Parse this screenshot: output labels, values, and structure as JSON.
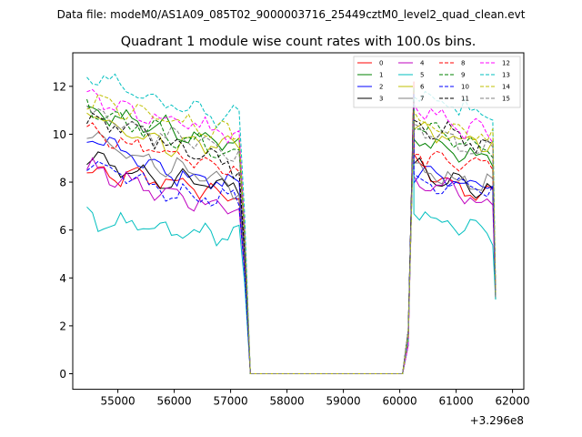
{
  "figure": {
    "suptitle": "Data file: modeM0/AS1A09_085T02_9000003716_25449cztM0_level2_quad_clean.evt"
  },
  "chart_data": {
    "type": "line",
    "title": "Quadrant 1 module wise count rates with 100.0s bins.",
    "xlabel": "",
    "ylabel": "",
    "x_offset_label": "+3.296e8",
    "xlim": [
      54200,
      62200
    ],
    "ylim": [
      -0.65,
      13.4
    ],
    "x_ticks": [
      55000,
      56000,
      57000,
      58000,
      59000,
      60000,
      61000,
      62000
    ],
    "y_ticks": [
      0,
      2,
      4,
      6,
      8,
      10,
      12
    ],
    "legend_position": "upper-right",
    "legend_columns": 4,
    "segments": [
      {
        "x_start": 54450,
        "x_end": 57150,
        "step": 100
      },
      {
        "x_start": 60250,
        "x_end": 61650,
        "step": 100
      }
    ],
    "gap": {
      "x": [
        57250,
        57350,
        60050,
        60150
      ],
      "transition_fraction": [
        0.6,
        0,
        0,
        0.15
      ]
    },
    "series": [
      {
        "name": "0",
        "color": "#ff0000",
        "style": "solid",
        "seg1": [
          8.3,
          8.1,
          7.3
        ],
        "seg2": [
          9.0,
          7.8,
          7.3
        ]
      },
      {
        "name": "1",
        "color": "#008000",
        "style": "solid",
        "seg1": [
          11.0,
          10.3,
          9.6
        ],
        "seg2": [
          9.8,
          9.3,
          8.8
        ]
      },
      {
        "name": "2",
        "color": "#0000ff",
        "style": "solid",
        "seg1": [
          10.0,
          8.4,
          7.9
        ],
        "seg2": [
          8.4,
          8.0,
          7.9
        ]
      },
      {
        "name": "3",
        "color": "#000000",
        "style": "solid",
        "seg1": [
          9.0,
          8.1,
          7.8
        ],
        "seg2": [
          8.8,
          8.0,
          7.6
        ]
      },
      {
        "name": "4",
        "color": "#bf00bf",
        "style": "solid",
        "seg1": [
          8.6,
          7.5,
          6.9
        ],
        "seg2": [
          8.1,
          7.6,
          7.0
        ]
      },
      {
        "name": "5",
        "color": "#00bfbf",
        "style": "solid",
        "seg1": [
          6.5,
          5.9,
          5.8
        ],
        "seg2": [
          6.7,
          6.2,
          5.8
        ]
      },
      {
        "name": "6",
        "color": "#bfbf00",
        "style": "solid",
        "seg1": [
          10.9,
          9.6,
          9.6
        ],
        "seg2": [
          10.2,
          9.8,
          9.5
        ]
      },
      {
        "name": "7",
        "color": "#808080",
        "style": "solid",
        "seg1": [
          9.9,
          8.7,
          7.6
        ],
        "seg2": [
          8.6,
          8.1,
          7.9
        ]
      },
      {
        "name": "8",
        "color": "#ff0000",
        "style": "dashed",
        "seg1": [
          10.0,
          9.3,
          8.6
        ],
        "seg2": [
          9.2,
          8.9,
          8.7
        ]
      },
      {
        "name": "9",
        "color": "#008000",
        "style": "dashed",
        "seg1": [
          11.2,
          10.0,
          9.1
        ],
        "seg2": [
          10.4,
          9.8,
          9.3
        ]
      },
      {
        "name": "10",
        "color": "#0000ff",
        "style": "dashed",
        "seg1": [
          8.8,
          7.6,
          7.3
        ],
        "seg2": [
          8.0,
          7.8,
          7.6
        ]
      },
      {
        "name": "11",
        "color": "#000000",
        "style": "dashed",
        "seg1": [
          10.7,
          9.8,
          8.6
        ],
        "seg2": [
          10.6,
          9.9,
          9.4
        ]
      },
      {
        "name": "12",
        "color": "#ff00ff",
        "style": "dashed",
        "seg1": [
          11.6,
          10.6,
          10.0
        ],
        "seg2": [
          11.2,
          10.3,
          10.0
        ]
      },
      {
        "name": "13",
        "color": "#00bfbf",
        "style": "dashed",
        "seg1": [
          12.6,
          11.3,
          10.6
        ],
        "seg2": [
          11.6,
          11.1,
          10.7
        ]
      },
      {
        "name": "14",
        "color": "#bfbf00",
        "style": "dashed",
        "seg1": [
          11.4,
          10.6,
          9.9
        ],
        "seg2": [
          10.6,
          10.2,
          9.9
        ]
      },
      {
        "name": "15",
        "color": "#808080",
        "style": "dashed",
        "seg1": [
          10.9,
          9.9,
          9.3
        ],
        "seg2": [
          10.4,
          9.6,
          9.2
        ]
      }
    ],
    "end_values": [
      3.1,
      3.1,
      3.3,
      3.2,
      3.2,
      3.1,
      3.3,
      3.2,
      3.4,
      3.3,
      3.4,
      3.3,
      3.5,
      3.6,
      3.4,
      3.3
    ]
  }
}
